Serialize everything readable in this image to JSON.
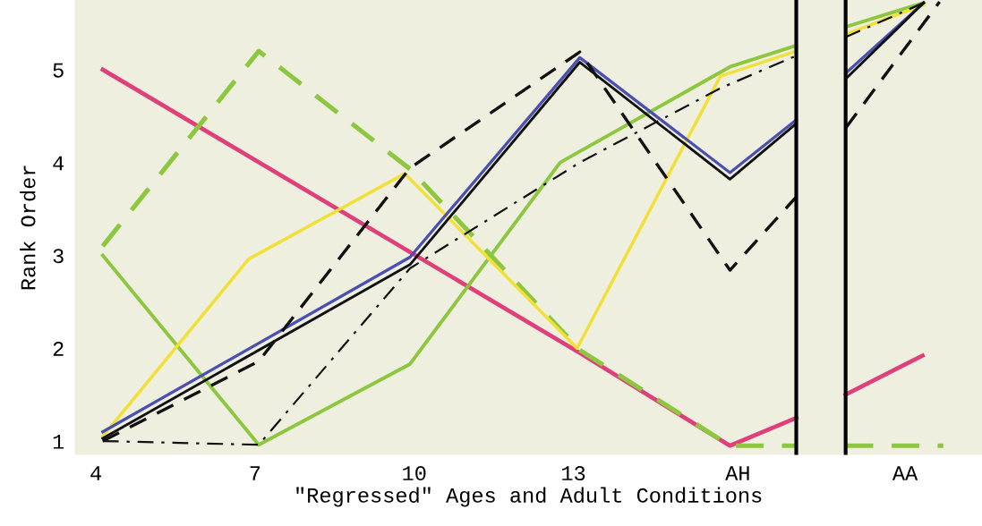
{
  "chart_data": {
    "type": "line",
    "xlabel": "\"Regressed\" Ages and Adult Conditions",
    "ylabel": "Rank Order",
    "xlim": [
      3.6,
      20.7
    ],
    "ylim": [
      0.85,
      5.75
    ],
    "xticks": [
      4,
      7,
      10,
      13,
      {
        "value": 16.1,
        "label": "AH"
      },
      {
        "value": 19.25,
        "label": "AA"
      }
    ],
    "yticks": [
      1,
      2,
      3,
      4,
      5
    ],
    "grid": false,
    "legend": false,
    "marker": "none",
    "ref_lines": [
      {
        "axis": "x",
        "value": 17.2,
        "color": "#000000",
        "line_style": "solid"
      },
      {
        "axis": "x",
        "value": 18.13,
        "color": "#000000",
        "line_style": "solid"
      }
    ],
    "series": [
      {
        "color": "#e0407a",
        "line_style": "solid",
        "x": [
          4.13,
          13.12,
          15.95,
          17.2,
          17.6,
          18.13,
          19.58
        ],
        "values": [
          5.0,
          1.95,
          0.95,
          1.25,
          null,
          1.5,
          1.92
        ]
      },
      {
        "color": "#8dc63f",
        "line_style": "dashed",
        "x": [
          4.13,
          7.07,
          9.92,
          13.12,
          15.95,
          17.2,
          17.6,
          18.13,
          19.97
        ],
        "values": [
          3.1,
          5.2,
          3.93,
          1.98,
          0.95,
          0.95,
          null,
          0.95,
          0.95
        ]
      },
      {
        "color": "#8dc63f",
        "line_style": "solid",
        "x": [
          4.13,
          7.07,
          9.92,
          12.75,
          15.95,
          17.2,
          17.6,
          18.13,
          19.6
        ],
        "values": [
          3.0,
          0.96,
          1.83,
          4.0,
          5.03,
          5.26,
          null,
          5.46,
          5.72
        ]
      },
      {
        "color": "#f2e03a",
        "line_style": "solid",
        "x": [
          4.13,
          6.88,
          9.82,
          13.07,
          15.77,
          17.2,
          17.6,
          18.13,
          19.6
        ],
        "values": [
          1.05,
          2.96,
          3.88,
          2.0,
          4.93,
          5.2,
          null,
          5.38,
          5.7
        ]
      },
      {
        "color": "#4a4fb0",
        "line_style": "solid",
        "x": [
          4.13,
          9.92,
          13.12,
          15.95,
          17.2,
          17.6,
          18.13,
          19.6
        ],
        "values": [
          1.1,
          2.98,
          5.13,
          3.89,
          4.46,
          null,
          4.96,
          5.72
        ]
      },
      {
        "color": "#111111",
        "line_style": "solid",
        "x": [
          4.13,
          9.92,
          13.12,
          15.95,
          17.2,
          17.6,
          18.13,
          19.6
        ],
        "values": [
          1.03,
          2.9,
          5.08,
          3.82,
          4.42,
          null,
          4.9,
          5.72
        ]
      },
      {
        "color": "#111111",
        "line_style": "dashed",
        "x": [
          4.13,
          7.07,
          9.92,
          13.12,
          15.95,
          17.2,
          17.6,
          18.13,
          19.9
        ],
        "values": [
          1.0,
          1.86,
          3.94,
          5.19,
          2.84,
          3.63,
          null,
          4.37,
          5.73
        ]
      },
      {
        "color": "#111111",
        "line_style": "dashdot",
        "x": [
          4.13,
          7.07,
          9.92,
          13.12,
          15.77,
          17.2,
          17.6,
          18.13,
          19.6
        ],
        "values": [
          1.0,
          0.96,
          2.86,
          4.0,
          4.8,
          5.15,
          null,
          5.35,
          5.72
        ]
      }
    ]
  }
}
